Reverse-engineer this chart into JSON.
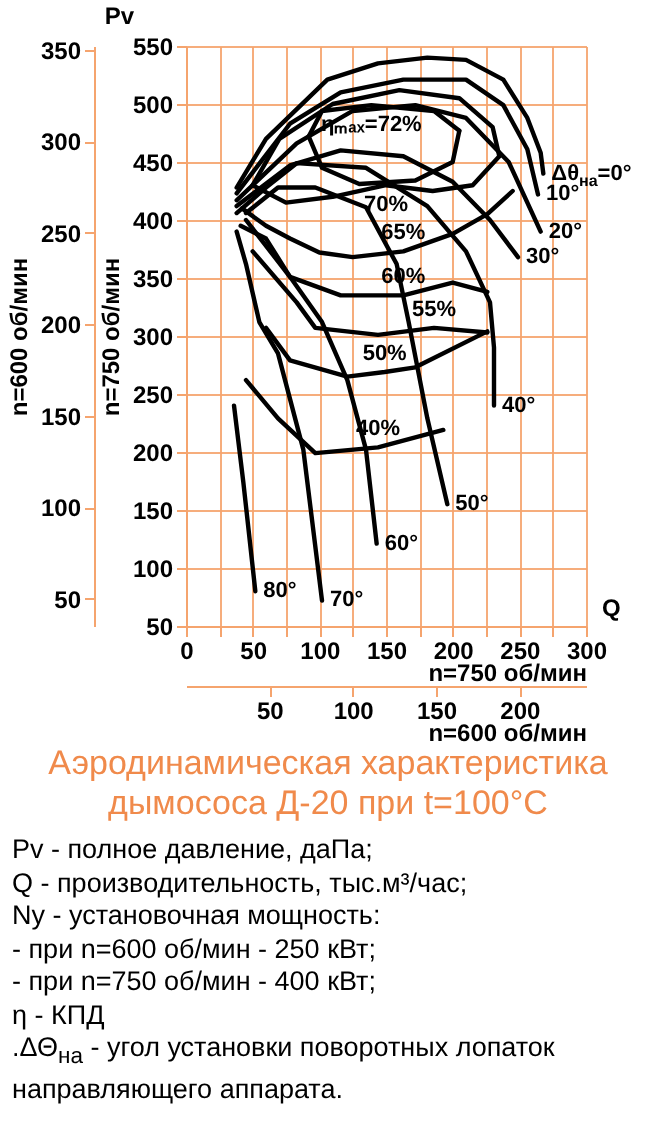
{
  "chart_data": {
    "type": "line",
    "title": "Аэродинамическая характеристика дымососа Д-20 при t=100°C",
    "xlabel": "n=750 об/мин",
    "ylabel": "n=750 об/мин",
    "y2label": "n=600 об/мин",
    "x2label": "n=600 об/мин",
    "xlim": [
      0,
      300
    ],
    "xticks": [
      0,
      {
        "value": 25,
        "label": null
      },
      50,
      {
        "value": 75,
        "label": null
      },
      100,
      {
        "value": 125,
        "label": null
      },
      150,
      {
        "value": 175,
        "label": null
      },
      200,
      {
        "value": 225,
        "label": null
      },
      250,
      {
        "value": 275,
        "label": null
      },
      300
    ],
    "ylim": [
      50,
      550
    ],
    "yticks": [
      50,
      100,
      150,
      200,
      250,
      300,
      350,
      400,
      450,
      500,
      550
    ],
    "y2lim": [
      35,
      352
    ],
    "y2ticks": [
      50,
      100,
      150,
      200,
      250,
      300,
      350
    ],
    "x2lim": [
      0,
      240
    ],
    "x2ticks": [
      50,
      100,
      150,
      200
    ],
    "grid": true,
    "legend": false,
    "series": [
      {
        "color": "#000000",
        "x": [
          38,
          60,
          106,
          144,
          181,
          210,
          238,
          256,
          266,
          268
        ],
        "values": [
          428,
          470,
          521,
          535,
          540,
          538,
          521,
          488,
          458,
          440
        ]
      },
      {
        "color": "#000000",
        "x": [
          38,
          78,
          116,
          163,
          210,
          238,
          256,
          264
        ],
        "values": [
          423,
          483,
          510,
          521,
          521,
          499,
          461,
          422
        ]
      },
      {
        "color": "#000000",
        "x": [
          38,
          83,
          125,
          172,
          210,
          242,
          266
        ],
        "values": [
          417,
          466,
          494,
          499,
          488,
          450,
          390
        ]
      },
      {
        "color": "#000000",
        "x": [
          38,
          78,
          116,
          163,
          200,
          228,
          249
        ],
        "values": [
          412,
          447,
          460,
          455,
          433,
          400,
          368
        ]
      },
      {
        "color": "#000000",
        "x": [
          38,
          60,
          83,
          135,
          181,
          210,
          228,
          231,
          231
        ],
        "values": [
          406,
          428,
          449,
          445,
          412,
          373,
          329,
          290,
          240
        ]
      },
      {
        "color": "#000000",
        "x": [
          45,
          69,
          97,
          135,
          158,
          167,
          181,
          196
        ],
        "values": [
          406,
          428,
          428,
          411,
          362,
          312,
          229,
          155
        ]
      },
      {
        "color": "#000000",
        "x": [
          41,
          60,
          78,
          102,
          121,
          135,
          143
        ],
        "values": [
          395,
          384,
          351,
          312,
          262,
          202,
          121
        ]
      },
      {
        "color": "#000000",
        "x": [
          38,
          45,
          55,
          69,
          88,
          102
        ],
        "values": [
          390,
          362,
          312,
          285,
          202,
          72
        ]
      },
      {
        "color": "#000000",
        "x": [
          36,
          43,
          52
        ],
        "values": [
          240,
          174,
          80
        ]
      },
      {
        "color": "#000000",
        "x": [
          92,
          102,
          139,
          186,
          205
        ],
        "values": [
          472,
          494,
          499,
          494,
          477
        ]
      },
      {
        "color": "#000000",
        "x": [
          92,
          102,
          130,
          172,
          200,
          205
        ],
        "values": [
          472,
          445,
          431,
          434,
          450,
          477
        ]
      },
      {
        "color": "#000000",
        "x": [
          50,
          70,
          110,
          160,
          205,
          230,
          235
        ],
        "values": [
          430,
          470,
          500,
          512,
          505,
          480,
          455
        ]
      },
      {
        "color": "#000000",
        "x": [
          50,
          75,
          110,
          150,
          185,
          215,
          235
        ],
        "values": [
          430,
          415,
          420,
          430,
          425,
          430,
          455
        ]
      },
      {
        "color": "#000000",
        "x": [
          42,
          60,
          78,
          100,
          125,
          163,
          200,
          226,
          245
        ],
        "values": [
          410,
          395,
          384,
          372,
          368,
          373,
          388,
          405,
          425
        ]
      },
      {
        "color": "#000000",
        "x": [
          45,
          78,
          116,
          163,
          200,
          226
        ],
        "values": [
          400,
          351,
          335,
          335,
          346,
          338
        ]
      },
      {
        "color": "#000000",
        "x": [
          50,
          83,
          97,
          144,
          186,
          226
        ],
        "values": [
          373,
          329,
          307,
          301,
          307,
          303
        ]
      },
      {
        "color": "#000000",
        "x": [
          60,
          78,
          121,
          149,
          172,
          226
        ],
        "values": [
          307,
          279,
          265,
          269,
          273,
          304
        ]
      },
      {
        "color": "#000000",
        "x": [
          45,
          69,
          97,
          144,
          193
        ],
        "values": [
          262,
          229,
          199,
          204,
          219
        ]
      }
    ],
    "annotations": [
      "Pv",
      "Q",
      "Pv - полное давление, даПа;",
      "Q - производительность, тыс.м³/час;",
      "Ny - установочная мощность:",
      "- при n=600 об/мин - 250 кВт;",
      "- при n=750 об/мин - 400 кВт;",
      "η - КПД",
      ".ΔΘ$_{на}$ - угол установки поворотных лопаток направляющего аппарата.",
      {
        "text": "ηₘₐₓ=72%",
        "x": 139,
        "y": 499
      },
      {
        "text": "70%",
        "x": 150,
        "y": 430
      },
      {
        "text": "65%",
        "x": 163,
        "y": 373
      },
      {
        "text": "60%",
        "x": 163,
        "y": 335
      },
      {
        "text": "55%",
        "x": 186,
        "y": 307
      },
      {
        "text": "50%",
        "x": 149,
        "y": 269
      },
      {
        "text": "40%",
        "x": 144,
        "y": 204
      },
      {
        "text": "Δθ$_{на}$=0°",
        "x": 268,
        "y": 440
      },
      {
        "text": "10°",
        "x": 264,
        "y": 422
      },
      {
        "text": "20°",
        "x": 266,
        "y": 390
      },
      {
        "text": "30°",
        "x": 249,
        "y": 368
      },
      {
        "text": "40°",
        "x": 231,
        "y": 240
      },
      {
        "text": "50°",
        "x": 196,
        "y": 155
      },
      {
        "text": "60°",
        "x": 143,
        "y": 121
      },
      {
        "text": "70°",
        "x": 102,
        "y": 72
      },
      {
        "text": "80°",
        "x": 52,
        "y": 80
      }
    ]
  }
}
